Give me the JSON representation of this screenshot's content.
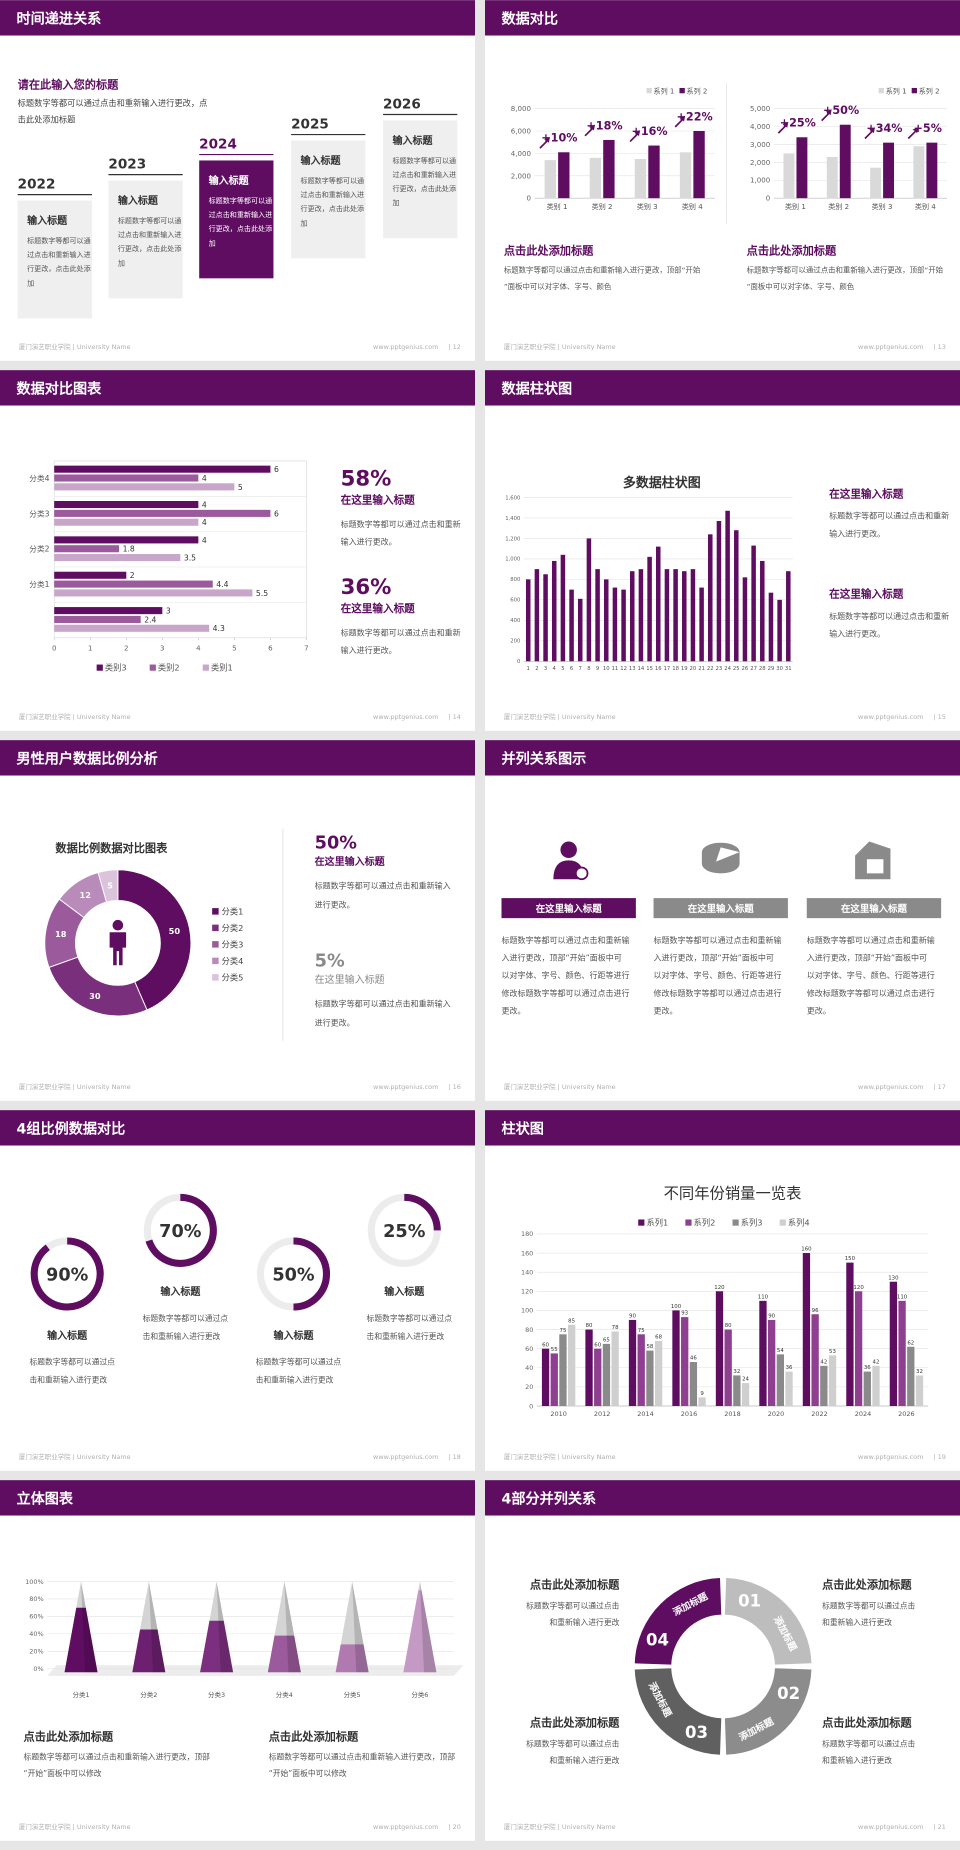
{
  "footer": {
    "left": "厦门演艺职业学院 | University Name",
    "site": "www.pptgenius.com"
  },
  "slides": [
    {
      "title": "时间递进关系",
      "page": "| 12",
      "heading": "请在此输入您的标题",
      "intro": "标题数字等都可以通过点击和重新输入进行更改，点击此处添加标题",
      "items": [
        {
          "year": "2022",
          "title": "输入标题",
          "body": "标题数字等都可以通过点击和重新输入进行更改，点击此处添加"
        },
        {
          "year": "2023",
          "title": "输入标题",
          "body": "标题数字等都可以通过点击和重新输入进行更改，点击此处添加"
        },
        {
          "year": "2024",
          "title": "输入标题",
          "body": "标题数字等都可以通过点击和重新输入进行更改，点击此处添加"
        },
        {
          "year": "2025",
          "title": "输入标题",
          "body": "标题数字等都可以通过点击和重新输入进行更改，点击此处添加"
        },
        {
          "year": "2026",
          "title": "输入标题",
          "body": "标题数字等都可以通过点击和重新输入进行更改，点击此处添加"
        }
      ]
    },
    {
      "title": "数据对比",
      "page": "| 13",
      "charts": [
        {
          "type": "bar",
          "categories": [
            "类别 1",
            "类别 2",
            "类别 3",
            "类别 4"
          ],
          "series": [
            {
              "name": "系列 1",
              "color": "#d9d9d9",
              "values": [
                3400,
                3600,
                3500,
                4100
              ]
            },
            {
              "name": "系列 2",
              "color": "#5e0d61",
              "values": [
                4100,
                5200,
                4700,
                6000
              ]
            }
          ],
          "ylim": [
            0,
            8000
          ],
          "yticks": [
            0,
            {
              "value": 2000,
              "label": "2,000"
            },
            {
              "value": 4000,
              "label": "4,000"
            },
            {
              "value": 6000,
              "label": "6,000"
            },
            {
              "value": 8000,
              "label": "8,000"
            }
          ],
          "grid": true,
          "annotations": [
            "+10%",
            "+18%",
            "+16%",
            "+22%"
          ],
          "heading": "点击此处添加标题",
          "body": "标题数字等都可以通过点击和重新输入进行更改，顶部“开始”面板中可以对字体、字号、颜色"
        },
        {
          "type": "bar",
          "categories": [
            "类别 1",
            "类别 2",
            "类别 3",
            "类别 4"
          ],
          "series": [
            {
              "name": "系列 1",
              "color": "#d9d9d9",
              "values": [
                2500,
                2300,
                1700,
                2900
              ]
            },
            {
              "name": "系列 2",
              "color": "#5e0d61",
              "values": [
                3400,
                4100,
                3100,
                3100
              ]
            }
          ],
          "ylim": [
            0,
            5000
          ],
          "yticks": [
            0,
            {
              "value": 1000,
              "label": "1,000"
            },
            {
              "value": 2000,
              "label": "2,000"
            },
            {
              "value": 3000,
              "label": "3,000"
            },
            {
              "value": 4000,
              "label": "4,000"
            },
            {
              "value": 5000,
              "label": "5,000"
            }
          ],
          "grid": true,
          "annotations": [
            "+25%",
            "+50%",
            "+34%",
            "+5%"
          ],
          "heading": "点击此处添加标题",
          "body": "标题数字等都可以通过点击和重新输入进行更改，顶部“开始”面板中可以对字体、字号、颜色"
        }
      ]
    },
    {
      "title": "数据对比图表",
      "page": "| 14",
      "chart": {
        "type": "hbar",
        "categories": [
          null,
          "分类1",
          "分类2",
          "分类3",
          "分类4"
        ],
        "series": [
          {
            "name": "类别3",
            "color": "#5e0d61",
            "values": [
              3,
              2,
              4,
              4,
              6
            ]
          },
          {
            "name": "类别2",
            "color": "#9b5a9c",
            "values": [
              2.4,
              4.4,
              1.8,
              6,
              4
            ]
          },
          {
            "name": "类别1",
            "color": "#c8a6c9",
            "values": [
              4.3,
              5.5,
              3.5,
              4,
              5
            ]
          }
        ],
        "xlim": [
          0,
          7
        ],
        "xticks": [
          0,
          1,
          2,
          3,
          4,
          5,
          6,
          7
        ]
      },
      "blocks": [
        {
          "value": "58%",
          "title": "在这里输入标题",
          "body": "标题数字等都可以通过点击和重新输入进行更改。"
        },
        {
          "value": "36%",
          "title": "在这里输入标题",
          "body": "标题数字等都可以通过点击和重新输入进行更改。"
        }
      ]
    },
    {
      "title": "数据柱状图",
      "page": "| 15",
      "chart": {
        "type": "bar",
        "title": "多数据柱状图",
        "categories": [
          "1",
          "2",
          "3",
          "4",
          "5",
          "6",
          "7",
          "8",
          "9",
          "10",
          "11",
          "12",
          "13",
          "14",
          "15",
          "16",
          "17",
          "18",
          "19",
          "20",
          "21",
          "22",
          "23",
          "24",
          "25",
          "26",
          "27",
          "28",
          "29",
          "30",
          "31"
        ],
        "series": [
          {
            "color": "#5e0d61",
            "values": [
              800,
              900,
              850,
              980,
              1040,
              700,
              610,
              1200,
              900,
              800,
              720,
              700,
              880,
              900,
              1020,
              1120,
              900,
              900,
              880,
              900,
              720,
              1240,
              1370,
              1470,
              1280,
              820,
              1130,
              980,
              670,
              600,
              880
            ]
          }
        ],
        "ylim": [
          0,
          1600
        ],
        "yticks": [
          0,
          200,
          400,
          600,
          800,
          {
            "value": 1000,
            "label": "1,000"
          },
          {
            "value": 1200,
            "label": "1,200"
          },
          {
            "value": 1400,
            "label": "1,400"
          },
          {
            "value": 1600,
            "label": "1,600"
          }
        ],
        "grid": true
      },
      "blocks": [
        {
          "title": "在这里输入标题",
          "body": "标题数字等都可以通过点击和重新输入进行更改。"
        },
        {
          "title": "在这里输入标题",
          "body": "标题数字等都可以通过点击和重新输入进行更改。"
        }
      ]
    },
    {
      "title": "男性用户数据比例分析",
      "page": "| 16",
      "chart": {
        "type": "donut",
        "title": "数据比例数据对比图表",
        "categories": [
          "分类1",
          "分类2",
          "分类3",
          "分类4",
          "分类5"
        ],
        "values": [
          50,
          30,
          18,
          12,
          5
        ],
        "colors": [
          "#5e0d61",
          "#7a2f7c",
          "#9a5a9b",
          "#b98bba",
          "#dbc3dc"
        ]
      },
      "blocks": [
        {
          "value": "50%",
          "title": "在这里输入标题",
          "body": "标题数字等都可以通过点击和重新输入进行更改。"
        },
        {
          "value": "5%",
          "title": "在这里输入标题",
          "body": "标题数字等都可以通过点击和重新输入进行更改。"
        }
      ]
    },
    {
      "title": "并列关系图示",
      "page": "| 17",
      "columns": [
        {
          "title": "在这里输入标题",
          "body": "标题数字等都可以通过点击和重新输入进行更改，顶部“开始”面板中可以对字体、字号、颜色、行距等进行修改标题数字等都可以通过点击进行更改。"
        },
        {
          "title": "在这里输入标题",
          "body": "标题数字等都可以通过点击和重新输入进行更改，顶部“开始”面板中可以对字体、字号、颜色、行距等进行修改标题数字等都可以通过点击进行更改。"
        },
        {
          "title": "在这里输入标题",
          "body": "标题数字等都可以通过点击和重新输入进行更改，顶部“开始”面板中可以对字体、字号、颜色、行距等进行修改标题数字等都可以通过点击进行更改。"
        }
      ]
    },
    {
      "title": "4组比例数据对比",
      "page": "| 18",
      "rings": [
        {
          "value": 90,
          "value_label": "90%",
          "title": "输入标题",
          "body": "标题数字等都可以通过点击和重新输入进行更改"
        },
        {
          "value": 70,
          "value_label": "70%",
          "title": "输入标题",
          "body": "标题数字等都可以通过点击和重新输入进行更改"
        },
        {
          "value": 50,
          "value_label": "50%",
          "title": "输入标题",
          "body": "标题数字等都可以通过点击和重新输入进行更改"
        },
        {
          "value": 25,
          "value_label": "25%",
          "title": "输入标题",
          "body": "标题数字等都可以通过点击和重新输入进行更改"
        }
      ]
    },
    {
      "title": "柱状图",
      "page": "| 19",
      "chart": {
        "type": "bar",
        "title": "不同年份销量一览表",
        "categories": [
          "2010",
          "2012",
          "2014",
          "2016",
          "2018",
          "2020",
          "2022",
          "2024",
          "2026"
        ],
        "series": [
          {
            "name": "系列1",
            "color": "#5e0d61",
            "values": [
              60,
              80,
              90,
              100,
              120,
              110,
              160,
              150,
              130
            ]
          },
          {
            "name": "系列2",
            "color": "#8e3f90",
            "values": [
              55,
              60,
              75,
              93,
              80,
              90,
              96,
              120,
              110
            ]
          },
          {
            "name": "系列3",
            "color": "#8a8a8a",
            "values": [
              75,
              65,
              58,
              46,
              32,
              54,
              42,
              36,
              62
            ]
          },
          {
            "name": "系列4",
            "color": "#cfcfcf",
            "values": [
              85,
              78,
              68,
              9,
              24,
              36,
              53,
              42,
              32
            ]
          }
        ],
        "ylim": [
          0,
          180
        ],
        "yticks": [
          0,
          20,
          40,
          60,
          80,
          100,
          120,
          140,
          160,
          180
        ],
        "grid": true,
        "data_labels": true
      }
    },
    {
      "title": "立体图表",
      "page": "| 20",
      "chart": {
        "type": "pyramid",
        "categories": [
          "分类1",
          "分类2",
          "分类3",
          "分类4",
          "分类5",
          "分类6"
        ],
        "values": [
          70,
          45,
          55,
          38,
          28,
          90
        ],
        "colors": [
          "#5e0d61",
          "#6e2070",
          "#7d2f7f",
          "#9a5a9b",
          "#b07ab1",
          "#c49ac5"
        ],
        "ylim": [
          0,
          100
        ],
        "yticks": [
          {
            "value": 0,
            "label": "0%"
          },
          {
            "value": 20,
            "label": "20%"
          },
          {
            "value": 40,
            "label": "40%"
          },
          {
            "value": 60,
            "label": "60%"
          },
          {
            "value": 80,
            "label": "80%"
          },
          {
            "value": 100,
            "label": "100%"
          }
        ],
        "grid": true
      },
      "notes": [
        {
          "title": "点击此处添加标题",
          "body": "标题数字等都可以通过点击和重新输入进行更改，顶部“开始”面板中可以修改"
        },
        {
          "title": "点击此处添加标题",
          "body": "标题数字等都可以通过点击和重新输入进行更改，顶部“开始”面板中可以修改"
        }
      ]
    },
    {
      "title": "4部分并列关系",
      "page": "| 21",
      "segments": [
        {
          "number": "01",
          "label": "添加标题"
        },
        {
          "number": "02",
          "label": "添加标题"
        },
        {
          "number": "03",
          "label": "添加标题"
        },
        {
          "number": "04",
          "label": "添加标题"
        }
      ],
      "blocks": [
        {
          "title": "点击此处添加标题",
          "body": "标题数字等都可以通过点击和重新输入进行更改"
        },
        {
          "title": "点击此处添加标题",
          "body": "标题数字等都可以通过点击和重新输入进行更改"
        },
        {
          "title": "点击此处添加标题",
          "body": "标题数字等都可以通过点击和重新输入进行更改"
        },
        {
          "title": "点击此处添加标题",
          "body": "标题数字等都可以通过点击和重新输入进行更改"
        }
      ]
    }
  ]
}
